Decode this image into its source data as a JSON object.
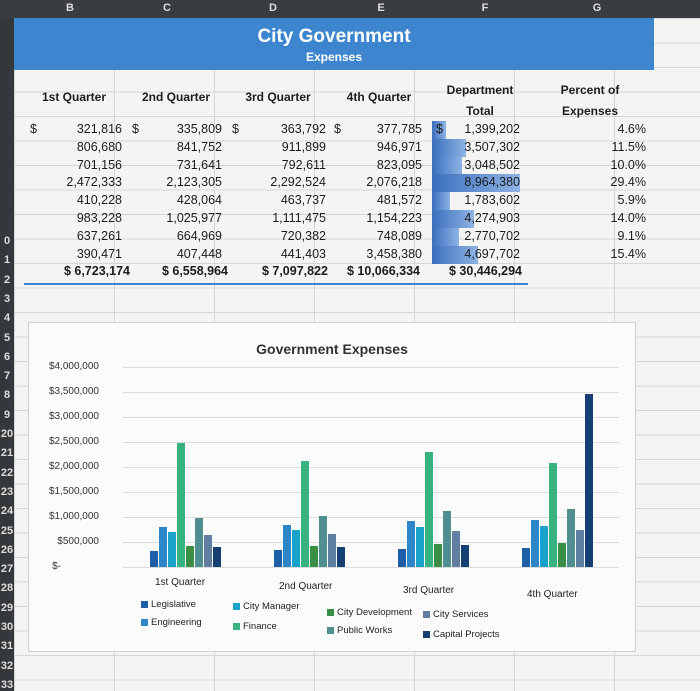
{
  "column_headers": [
    "B",
    "C",
    "D",
    "E",
    "F",
    "G"
  ],
  "row_headers": [
    "0",
    "1",
    "2",
    "3",
    "4",
    "5",
    "6",
    "7",
    "8",
    "9",
    "20",
    "21",
    "22",
    "23",
    "24",
    "25",
    "26",
    "27",
    "28",
    "29",
    "30",
    "31",
    "32",
    "33"
  ],
  "sheet": {
    "title": "City Government",
    "subtitle": "Expenses",
    "headers": [
      "1st Quarter",
      "2nd Quarter",
      "3rd Quarter",
      "4th Quarter",
      "Department Total",
      "Percent of Expenses"
    ],
    "rows": [
      [
        "321,816",
        "335,809",
        "363,792",
        "377,785",
        "1,399,202",
        "4.6%"
      ],
      [
        "806,680",
        "841,752",
        "911,899",
        "946,971",
        "3,507,302",
        "11.5%"
      ],
      [
        "701,156",
        "731,641",
        "792,611",
        "823,095",
        "3,048,502",
        "10.0%"
      ],
      [
        "2,472,333",
        "2,123,305",
        "2,292,524",
        "2,076,218",
        "8,964,380",
        "29.4%"
      ],
      [
        "410,228",
        "428,064",
        "463,737",
        "481,572",
        "1,783,602",
        "5.9%"
      ],
      [
        "983,228",
        "1,025,977",
        "1,111,475",
        "1,154,223",
        "4,274,903",
        "14.0%"
      ],
      [
        "637,261",
        "664,969",
        "720,382",
        "748,089",
        "2,770,702",
        "9.1%"
      ],
      [
        "390,471",
        "407,448",
        "441,403",
        "3,458,380",
        "4,697,702",
        "15.4%"
      ]
    ],
    "totals": [
      "$ 6,723,174",
      "$ 6,558,964",
      "$ 7,097,822",
      "$ 10,066,334",
      "$ 30,446,294"
    ],
    "dept_totals_numeric": [
      1399202,
      3507302,
      3048502,
      8964380,
      1783602,
      4274903,
      2770702,
      4697702
    ],
    "currency_symbol": "$"
  },
  "chart_data": {
    "type": "bar",
    "title": "Government Expenses",
    "categories": [
      "1st Quarter",
      "2nd Quarter",
      "3rd Quarter",
      "4th Quarter"
    ],
    "ylim": [
      0,
      4000000
    ],
    "ytick_values": [
      0,
      500000,
      1000000,
      1500000,
      2000000,
      2500000,
      3000000,
      3500000,
      4000000
    ],
    "ytick_labels": [
      "$-",
      "$500,000",
      "$1,000,000",
      "$1,500,000",
      "$2,000,000",
      "$2,500,000",
      "$3,000,000",
      "$3,500,000",
      "$4,000,000"
    ],
    "series": [
      {
        "name": "Legislative",
        "color": "#1f5fa8",
        "values": [
          321816,
          335809,
          363792,
          377785
        ]
      },
      {
        "name": "Engineering",
        "color": "#2c86c8",
        "values": [
          806680,
          841752,
          911899,
          946971
        ]
      },
      {
        "name": "City Manager",
        "color": "#1aa3c8",
        "values": [
          701156,
          731641,
          792611,
          823095
        ]
      },
      {
        "name": "Finance",
        "color": "#36b37e",
        "values": [
          2472333,
          2123305,
          2292524,
          2076218
        ]
      },
      {
        "name": "City Development",
        "color": "#3a8f44",
        "values": [
          410228,
          428064,
          463737,
          481572
        ]
      },
      {
        "name": "Public Works",
        "color": "#4f8f8f",
        "values": [
          983228,
          1025977,
          1111475,
          1154223
        ]
      },
      {
        "name": "City Services",
        "color": "#5f7fa0",
        "values": [
          637261,
          664969,
          720382,
          748089
        ]
      },
      {
        "name": "Capital Projects",
        "color": "#163f73",
        "values": [
          390471,
          407448,
          441403,
          3458380
        ]
      }
    ],
    "legend": [
      "Legislative",
      "City Manager",
      "City Development",
      "City Services",
      "Engineering",
      "Finance",
      "Public Works",
      "Capital Projects"
    ]
  }
}
